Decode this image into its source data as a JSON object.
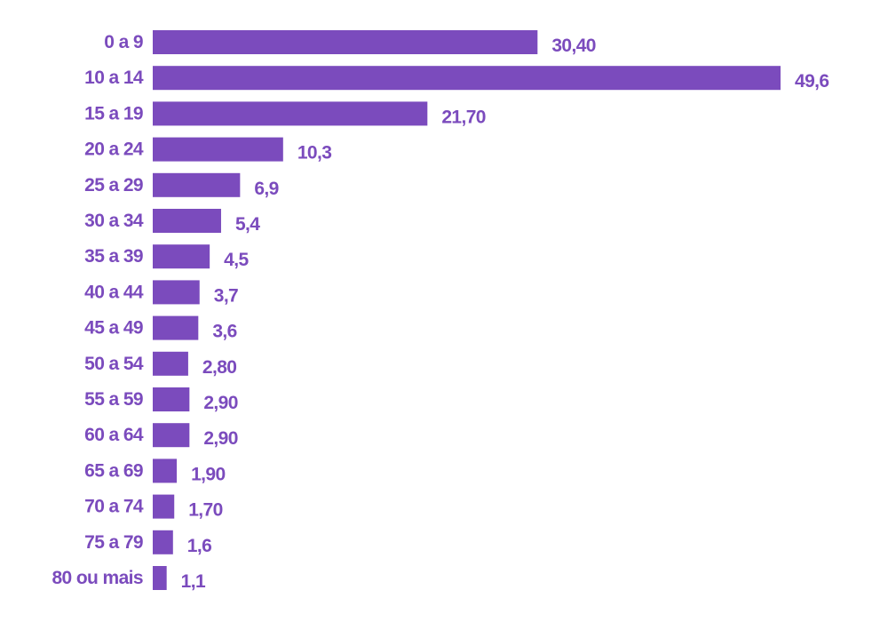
{
  "chart_data": {
    "type": "bar",
    "orientation": "horizontal",
    "categories": [
      "0 a 9",
      "10 a 14",
      "15 a 19",
      "20 a 24",
      "25 a 29",
      "30 a 34",
      "35 a 39",
      "40 a 44",
      "45 a 49",
      "50 a 54",
      "55 a 59",
      "60 a 64",
      "65 a 69",
      "70 a 74",
      "75 a 79",
      "80 ou mais"
    ],
    "values": [
      30.4,
      49.6,
      21.7,
      10.3,
      6.9,
      5.4,
      4.5,
      3.7,
      3.6,
      2.8,
      2.9,
      2.9,
      1.9,
      1.7,
      1.6,
      1.1
    ],
    "value_labels": [
      "30,40",
      "49,6",
      "21,70",
      "10,3",
      "6,9",
      "5,4",
      "4,5",
      "3,7",
      "3,6",
      "2,80",
      "2,90",
      "2,90",
      "1,90",
      "1,70",
      "1,6",
      "1,1"
    ],
    "title": "",
    "xlabel": "",
    "ylabel": "",
    "xlim": [
      0,
      49.6
    ],
    "grid": false,
    "legend": "none",
    "colors": {
      "bar": "#7b4bbd",
      "category_text": "#7b4bbd",
      "value_text": "#7b4bbd"
    }
  }
}
